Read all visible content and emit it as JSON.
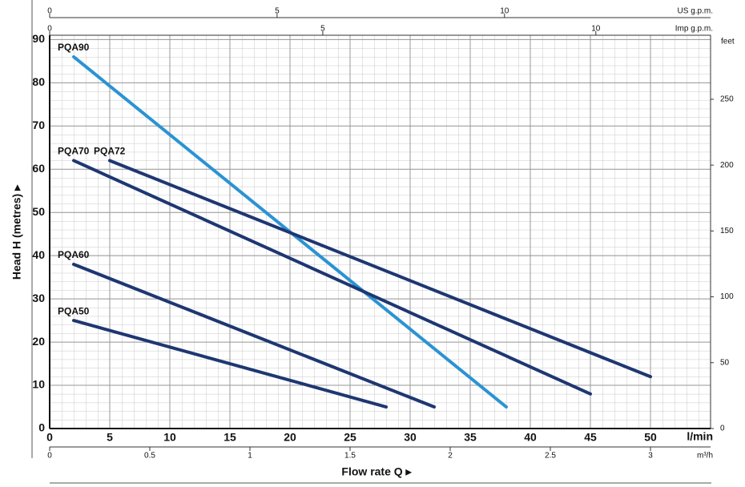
{
  "chart_data": {
    "type": "line",
    "xlabel": "Flow rate Q ▸",
    "ylabel": "Head H  (metres) ▸",
    "xunit": "l/min",
    "xlim": [
      0,
      55
    ],
    "xticks": [
      0,
      5,
      10,
      15,
      20,
      25,
      30,
      35,
      40,
      45,
      50
    ],
    "ylim": [
      0,
      91
    ],
    "yticks": [
      0,
      10,
      20,
      30,
      40,
      50,
      60,
      70,
      80,
      90
    ],
    "y2label": "feet",
    "y2lim": [
      0,
      298.6
    ],
    "y2ticks": [
      0,
      50,
      100,
      150,
      200,
      250
    ],
    "x2label": "US g.p.m.",
    "x2lim": [
      0,
      14.53
    ],
    "x2ticks": [
      0,
      5,
      10
    ],
    "x3label": "Imp g.p.m.",
    "x3lim": [
      0,
      12.1
    ],
    "x3ticks": [
      0,
      5,
      10
    ],
    "x4label": "m³/h",
    "x4lim": [
      0,
      3.3
    ],
    "x4ticks": [
      0,
      0.5,
      1,
      1.5,
      2,
      2.5,
      3
    ],
    "grid": true,
    "grid_x_step": 1,
    "grid_y_step": 2,
    "series": [
      {
        "name": "PQA90",
        "color": "#2b93d3",
        "x": [
          2,
          38
        ],
        "values": [
          86,
          5
        ]
      },
      {
        "name": "PQA72",
        "color": "#1e3772",
        "x": [
          5,
          50
        ],
        "values": [
          62,
          12
        ]
      },
      {
        "name": "PQA70",
        "color": "#1e3772",
        "x": [
          2,
          45
        ],
        "values": [
          62,
          8
        ]
      },
      {
        "name": "PQA60",
        "color": "#1e3772",
        "x": [
          2,
          32
        ],
        "values": [
          38,
          5
        ]
      },
      {
        "name": "PQA50",
        "color": "#1e3772",
        "x": [
          2,
          28
        ],
        "values": [
          25,
          5
        ]
      }
    ]
  }
}
